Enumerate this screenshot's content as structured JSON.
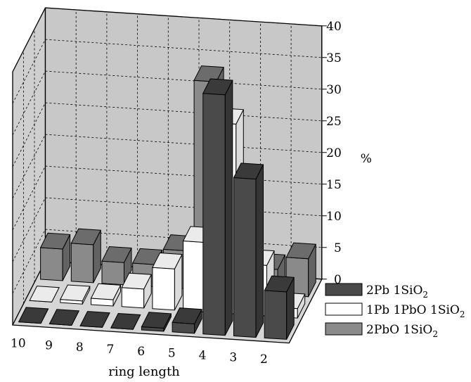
{
  "chart_data": {
    "type": "bar",
    "categories": [
      "10",
      "9",
      "8",
      "7",
      "6",
      "5",
      "4",
      "3",
      "2"
    ],
    "series": [
      {
        "name": "2Pb 1SiO2",
        "values": [
          0,
          0,
          0,
          0,
          0.5,
          1.5,
          38,
          25,
          7.5
        ],
        "color": "#4a4a4a"
      },
      {
        "name": "1Pb 1PbO 1SiO2",
        "values": [
          0,
          0.5,
          1,
          3,
          6.5,
          11,
          30,
          8,
          1.5
        ],
        "color": "#ffffff"
      },
      {
        "name": "2PbO 1SiO2",
        "values": [
          5,
          6,
          3.5,
          3.5,
          6,
          33,
          15.5,
          4,
          6
        ],
        "color": "#8a8a8a"
      }
    ],
    "legend_labels": [
      {
        "main": "2Pb 1SiO",
        "sub": "2"
      },
      {
        "main": "1Pb 1PbO 1SiO",
        "sub": "2"
      },
      {
        "main": "2PbO 1SiO",
        "sub": "2"
      }
    ],
    "xlabel": "ring length",
    "ylabel": "%",
    "ylim": [
      0,
      40
    ],
    "yticks": [
      "0",
      "5",
      "10",
      "15",
      "20",
      "25",
      "30",
      "35",
      "40"
    ],
    "grid": true,
    "legend_position": "bottom-right",
    "background_color": "#c8c8c8"
  }
}
